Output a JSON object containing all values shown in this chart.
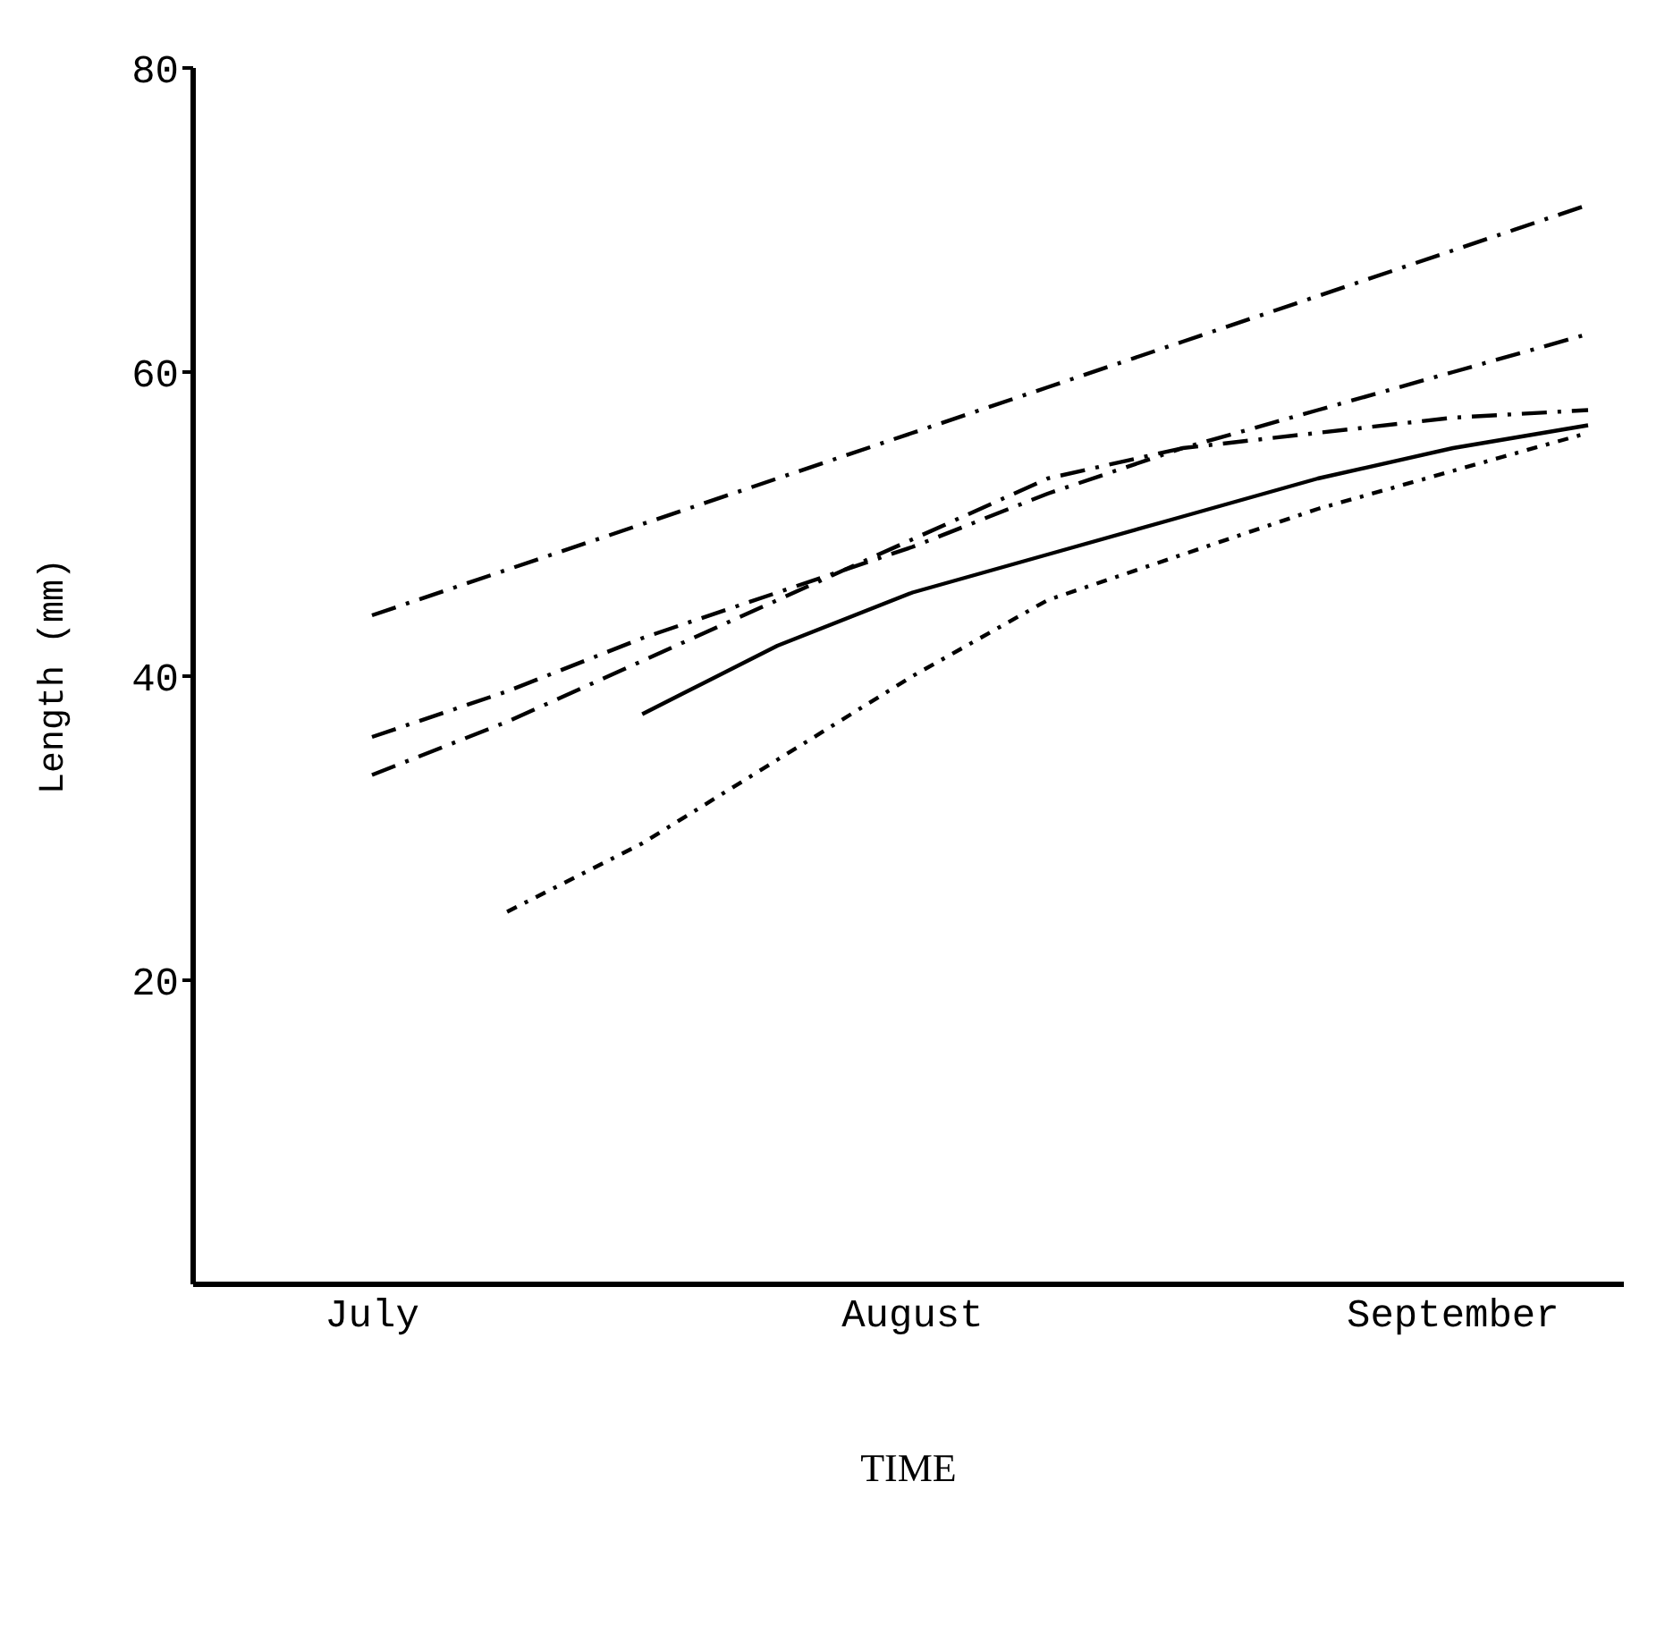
{
  "chart_data": {
    "type": "line",
    "xlabel": "TIME",
    "ylabel": "Length (mm)",
    "categories": [
      "July",
      null,
      null,
      null,
      "August",
      null,
      null,
      null,
      "September",
      null
    ],
    "ylim": [
      0,
      80
    ],
    "yticks": [
      20,
      40,
      60,
      80
    ],
    "grid": false,
    "legend": false,
    "marker": "none",
    "series": [
      {
        "color": "#000000",
        "line_style": "dashed",
        "values": [
          44,
          47,
          50,
          53,
          56,
          59,
          62,
          65,
          68,
          71
        ]
      },
      {
        "color": "#000000",
        "line_style": "dashed",
        "values": [
          36,
          39,
          42.5,
          45.5,
          48.5,
          52,
          55,
          56,
          57,
          57.5
        ]
      },
      {
        "color": "#000000",
        "line_style": "dashed",
        "values": [
          33.5,
          37,
          41,
          45,
          49,
          53,
          55,
          57.5,
          60,
          62.5
        ]
      },
      {
        "color": "#000000",
        "line_style": "solid",
        "values": [
          null,
          null,
          37.5,
          42,
          45.5,
          48,
          50.5,
          53,
          55,
          56.5
        ]
      },
      {
        "color": "#000000",
        "line_style": "dotted",
        "values": [
          null,
          24.5,
          29,
          34.5,
          40,
          45,
          48,
          51,
          53.5,
          56
        ]
      }
    ]
  }
}
